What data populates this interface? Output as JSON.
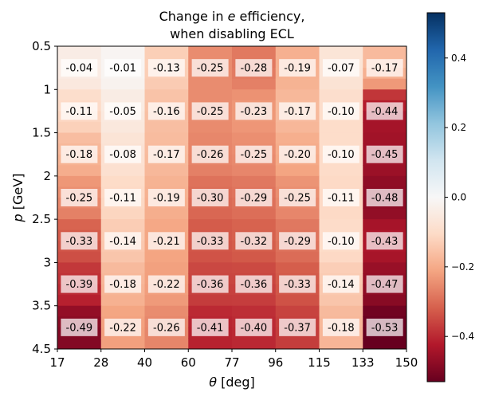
{
  "chart_data": {
    "type": "heatmap",
    "title_line1_prefix": "Change in ",
    "title_line1_var": "e",
    "title_line1_suffix": " efficiency,",
    "title_line2": "when disabling ECL",
    "xlabel_var": "θ",
    "xlabel_unit": " [deg]",
    "ylabel_var": "p",
    "ylabel_unit": " [GeV]",
    "x_edges": [
      17,
      28,
      40,
      60,
      77,
      96,
      115,
      133,
      150
    ],
    "x_tick_labels": [
      "17",
      "28",
      "40",
      "60",
      "77",
      "96",
      "115",
      "133",
      "150"
    ],
    "y_edges": [
      0.5,
      1,
      1.5,
      2,
      2.5,
      3,
      3.5,
      4.5
    ],
    "y_tick_labels": [
      "0.5",
      "1",
      "1.5",
      "2",
      "2.5",
      "3",
      "3.5",
      "4.5"
    ],
    "values": [
      [
        -0.04,
        -0.01,
        -0.13,
        -0.25,
        -0.28,
        -0.19,
        -0.07,
        -0.17
      ],
      [
        -0.11,
        -0.05,
        -0.16,
        -0.25,
        -0.23,
        -0.17,
        -0.1,
        -0.44
      ],
      [
        -0.18,
        -0.08,
        -0.17,
        -0.26,
        -0.25,
        -0.2,
        -0.1,
        -0.45
      ],
      [
        -0.25,
        -0.11,
        -0.19,
        -0.3,
        -0.29,
        -0.25,
        -0.11,
        -0.48
      ],
      [
        -0.33,
        -0.14,
        -0.21,
        -0.33,
        -0.32,
        -0.29,
        -0.1,
        -0.43
      ],
      [
        -0.39,
        -0.18,
        -0.22,
        -0.36,
        -0.36,
        -0.33,
        -0.14,
        -0.47
      ],
      [
        -0.49,
        -0.22,
        -0.26,
        -0.41,
        -0.4,
        -0.37,
        -0.18,
        -0.53
      ]
    ],
    "labels": [
      [
        "-0.04",
        "-0.01",
        "-0.13",
        "-0.25",
        "-0.28",
        "-0.19",
        "-0.07",
        "-0.17"
      ],
      [
        "-0.11",
        "-0.05",
        "-0.16",
        "-0.25",
        "-0.23",
        "-0.17",
        "-0.10",
        "-0.44"
      ],
      [
        "-0.18",
        "-0.08",
        "-0.17",
        "-0.26",
        "-0.25",
        "-0.20",
        "-0.10",
        "-0.45"
      ],
      [
        "-0.25",
        "-0.11",
        "-0.19",
        "-0.30",
        "-0.29",
        "-0.25",
        "-0.11",
        "-0.48"
      ],
      [
        "-0.33",
        "-0.14",
        "-0.21",
        "-0.33",
        "-0.32",
        "-0.29",
        "-0.10",
        "-0.43"
      ],
      [
        "-0.39",
        "-0.18",
        "-0.22",
        "-0.36",
        "-0.36",
        "-0.33",
        "-0.14",
        "-0.47"
      ],
      [
        "-0.49",
        "-0.22",
        "-0.26",
        "-0.41",
        "-0.40",
        "-0.37",
        "-0.18",
        "-0.53"
      ]
    ],
    "colorbar": {
      "colormap": "RdBu",
      "range": [
        -0.53,
        0.53
      ],
      "ticks": [
        -0.4,
        -0.2,
        0.0,
        0.2,
        0.4
      ],
      "tick_labels": [
        "−0.4",
        "−0.2",
        "0.0",
        "0.2",
        "0.4"
      ]
    }
  }
}
